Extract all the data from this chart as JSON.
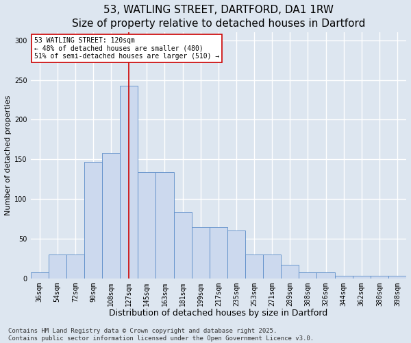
{
  "title": "53, WATLING STREET, DARTFORD, DA1 1RW",
  "subtitle": "Size of property relative to detached houses in Dartford",
  "xlabel": "Distribution of detached houses by size in Dartford",
  "ylabel": "Number of detached properties",
  "categories": [
    "36sqm",
    "54sqm",
    "72sqm",
    "90sqm",
    "108sqm",
    "127sqm",
    "145sqm",
    "163sqm",
    "181sqm",
    "199sqm",
    "217sqm",
    "235sqm",
    "253sqm",
    "271sqm",
    "289sqm",
    "308sqm",
    "326sqm",
    "344sqm",
    "362sqm",
    "380sqm",
    "398sqm"
  ],
  "bar_heights": [
    8,
    30,
    30,
    147,
    158,
    243,
    134,
    134,
    84,
    65,
    65,
    60,
    30,
    30,
    17,
    8,
    8,
    3,
    3,
    3,
    3
  ],
  "bar_color": "#ccd9ee",
  "bar_edge_color": "#5b8cc8",
  "vline_index": 5.0,
  "vline_color": "#cc0000",
  "annotation_text": "53 WATLING STREET: 120sqm\n← 48% of detached houses are smaller (480)\n51% of semi-detached houses are larger (510) →",
  "annotation_box_facecolor": "#ffffff",
  "annotation_box_edgecolor": "#cc0000",
  "background_color": "#dde6f0",
  "footer": "Contains HM Land Registry data © Crown copyright and database right 2025.\nContains public sector information licensed under the Open Government Licence v3.0.",
  "ylim": [
    0,
    310
  ],
  "yticks": [
    0,
    50,
    100,
    150,
    200,
    250,
    300
  ],
  "title_fontsize": 11,
  "xlabel_fontsize": 9,
  "ylabel_fontsize": 8,
  "tick_fontsize": 7,
  "footer_fontsize": 6.5,
  "grid_color": "#ffffff",
  "grid_linewidth": 1.0
}
